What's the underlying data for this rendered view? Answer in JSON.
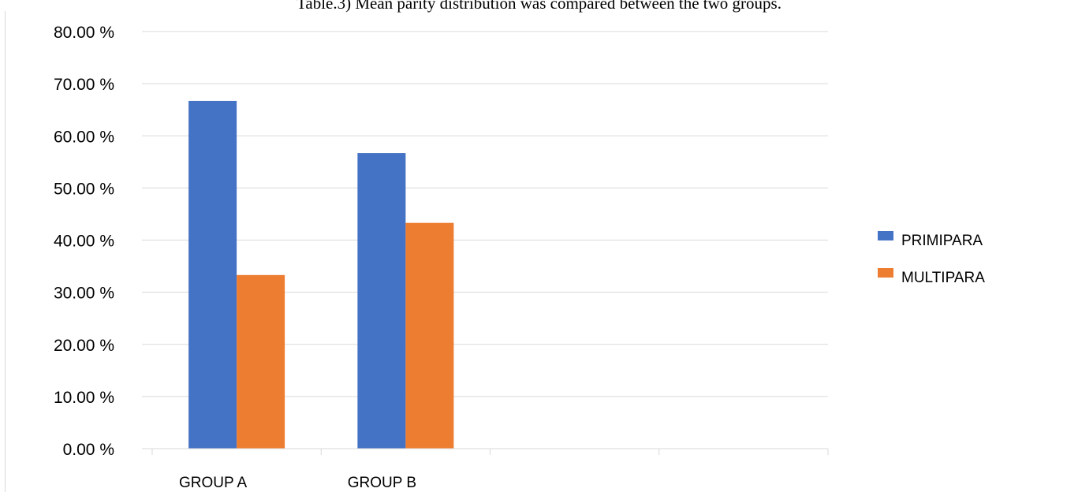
{
  "chart_data": {
    "type": "bar",
    "title": "Table.3) Mean parity distribution was compared between the two groups.",
    "categories": [
      "GROUP A",
      "GROUP B",
      "",
      ""
    ],
    "series": [
      {
        "name": "PRIMIPARA",
        "color": "#4472c4",
        "values": [
          66.7,
          56.7,
          null,
          null
        ]
      },
      {
        "name": "MULTIPARA",
        "color": "#ed7d31",
        "values": [
          33.3,
          43.3,
          null,
          null
        ]
      }
    ],
    "y_ticks": [
      "0.00 %",
      "10.00 %",
      "20.00 %",
      "30.00 %",
      "40.00 %",
      "50.00 %",
      "60.00 %",
      "70.00 %",
      "80.00 %"
    ],
    "ylim": [
      0,
      80
    ],
    "grid": true,
    "legend_position": "right"
  }
}
